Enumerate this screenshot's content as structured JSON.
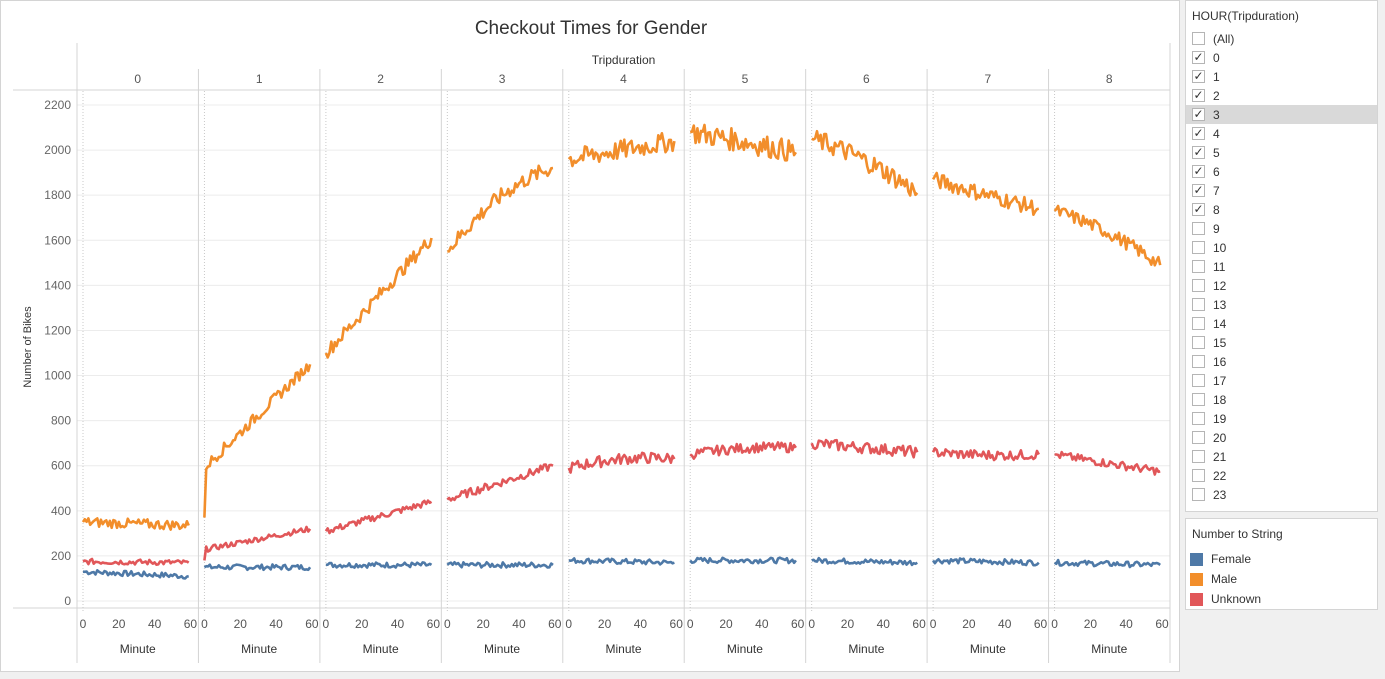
{
  "chart_data": {
    "type": "line",
    "title": "Checkout Times for Gender",
    "column_header": "Tripduration",
    "panels": [
      "0",
      "1",
      "2",
      "3",
      "4",
      "5",
      "6",
      "7",
      "8"
    ],
    "xlabel": "Minute",
    "ylabel": "Number of Bikes",
    "xlim": [
      0,
      60
    ],
    "xticks": [
      0,
      20,
      40,
      60
    ],
    "ylim": [
      0,
      2200
    ],
    "yticks": [
      0,
      200,
      400,
      600,
      800,
      1000,
      1200,
      1400,
      1600,
      1800,
      2000,
      2200
    ],
    "grid": true,
    "series": [
      {
        "name": "Male",
        "color": "#f28e2b",
        "start": [
          350,
          370,
          1100,
          1550,
          1960,
          2080,
          2050,
          1870,
          1730
        ],
        "end": [
          335,
          1050,
          1610,
          1920,
          2040,
          1990,
          1810,
          1740,
          1490
        ],
        "mid": [
          null,
          null,
          null,
          1850,
          2000,
          2040,
          1980,
          1800,
          1660
        ],
        "noise": [
          22,
          25,
          30,
          35,
          45,
          50,
          45,
          35,
          30
        ]
      },
      {
        "name": "Unknown",
        "color": "#e15759",
        "start": [
          175,
          180,
          310,
          450,
          590,
          650,
          700,
          660,
          650
        ],
        "end": [
          170,
          320,
          440,
          600,
          630,
          680,
          660,
          650,
          575
        ],
        "mid": [
          null,
          null,
          null,
          null,
          650,
          690,
          680,
          640,
          610
        ],
        "noise": [
          12,
          12,
          15,
          18,
          25,
          22,
          25,
          22,
          18
        ]
      },
      {
        "name": "Female",
        "color": "#4e79a7",
        "start": [
          130,
          150,
          160,
          160,
          180,
          180,
          180,
          180,
          170
        ],
        "end": [
          110,
          150,
          160,
          160,
          170,
          180,
          170,
          170,
          160
        ],
        "mid": [
          null,
          null,
          null,
          null,
          null,
          null,
          null,
          null,
          null
        ],
        "noise": [
          12,
          12,
          12,
          12,
          12,
          12,
          12,
          12,
          12
        ]
      }
    ]
  },
  "filter": {
    "title": "HOUR(Tripduration)",
    "items": [
      {
        "label": "(All)",
        "checked": false
      },
      {
        "label": "0",
        "checked": true
      },
      {
        "label": "1",
        "checked": true
      },
      {
        "label": "2",
        "checked": true
      },
      {
        "label": "3",
        "checked": true
      },
      {
        "label": "4",
        "checked": true
      },
      {
        "label": "5",
        "checked": true
      },
      {
        "label": "6",
        "checked": true
      },
      {
        "label": "7",
        "checked": true
      },
      {
        "label": "8",
        "checked": true
      },
      {
        "label": "9",
        "checked": false
      },
      {
        "label": "10",
        "checked": false
      },
      {
        "label": "11",
        "checked": false
      },
      {
        "label": "12",
        "checked": false
      },
      {
        "label": "13",
        "checked": false
      },
      {
        "label": "14",
        "checked": false
      },
      {
        "label": "15",
        "checked": false
      },
      {
        "label": "16",
        "checked": false
      },
      {
        "label": "17",
        "checked": false
      },
      {
        "label": "18",
        "checked": false
      },
      {
        "label": "19",
        "checked": false
      },
      {
        "label": "20",
        "checked": false
      },
      {
        "label": "21",
        "checked": false
      },
      {
        "label": "22",
        "checked": false
      },
      {
        "label": "23",
        "checked": false
      }
    ],
    "highlighted": "3"
  },
  "legend": {
    "title": "Number to String",
    "items": [
      {
        "label": "Female",
        "color": "#4e79a7"
      },
      {
        "label": "Male",
        "color": "#f28e2b"
      },
      {
        "label": "Unknown",
        "color": "#e15759"
      }
    ]
  }
}
